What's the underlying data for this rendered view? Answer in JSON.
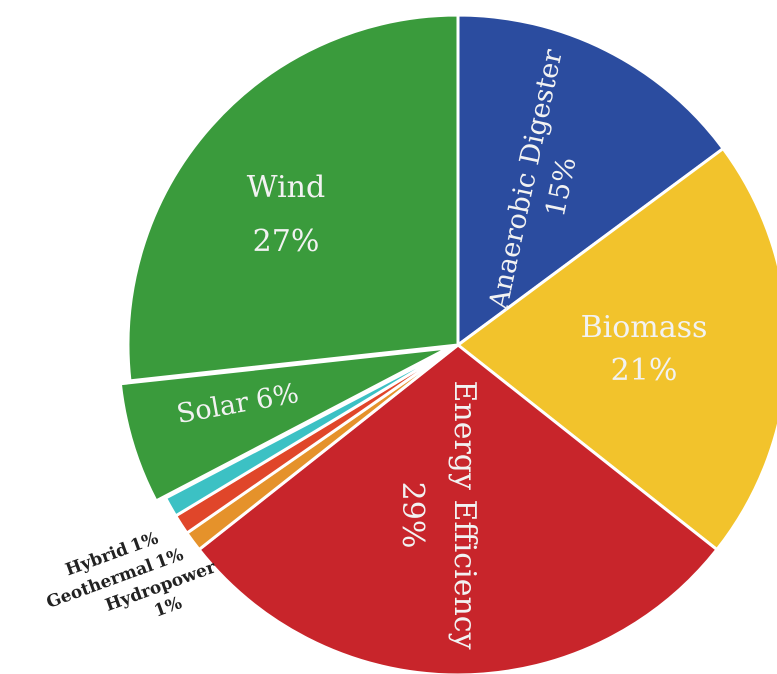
{
  "chart_data": {
    "type": "pie",
    "title": "",
    "slices": [
      {
        "label": "Anaerobic Digester",
        "value": 15,
        "value_label": "15%",
        "color": "#2b4c9f"
      },
      {
        "label": "Biomass",
        "value": 21,
        "value_label": "21%",
        "color": "#f2c32c"
      },
      {
        "label": "Energy Efficiency",
        "value": 29,
        "value_label": "29%",
        "color": "#c8252b"
      },
      {
        "label": "Hydropower",
        "value": 1,
        "value_label": "1%",
        "color": "#e5922b"
      },
      {
        "label": "Geothermal",
        "value": 1,
        "value_label": "1%",
        "color": "#e0462a"
      },
      {
        "label": "Hybrid",
        "value": 1,
        "value_label": "1%",
        "color": "#3cc1c4"
      },
      {
        "label": "Solar",
        "value": 6,
        "value_label": "6%",
        "color": "#3a9b3c"
      },
      {
        "label": "Wind",
        "value": 27,
        "value_label": "27%",
        "color": "#3a9b3c"
      }
    ],
    "start_angle_deg": 0,
    "direction": "clockwise",
    "exploded": "Solar"
  }
}
